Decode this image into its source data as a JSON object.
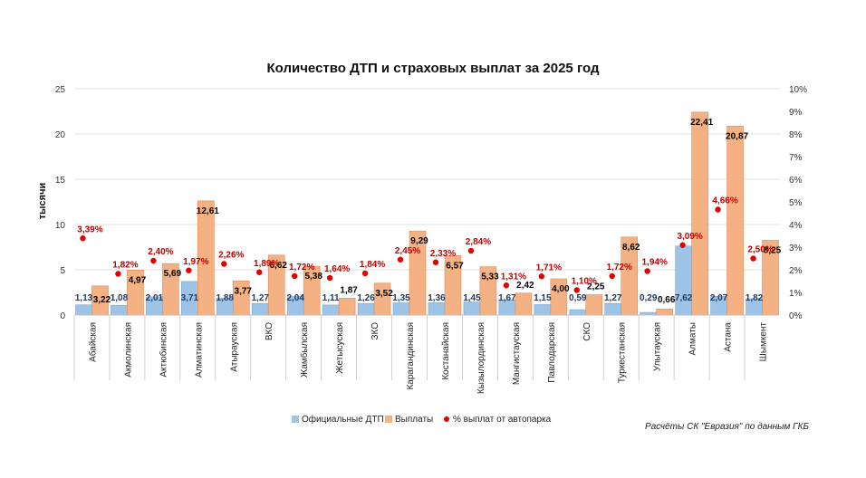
{
  "chart_data": {
    "type": "bar",
    "title": "Количество ДТП и страховых выплат за 2025 год",
    "ylabel": "тысячи",
    "ylim": [
      0,
      25
    ],
    "y_ticks": [
      "0",
      "5",
      "10",
      "15",
      "20",
      "25"
    ],
    "y2lim": [
      0,
      10
    ],
    "y2_ticks": [
      "0%",
      "1%",
      "2%",
      "3%",
      "4%",
      "5%",
      "6%",
      "7%",
      "8%",
      "9%",
      "10%"
    ],
    "categories": [
      "Абайская",
      "Акмолинская",
      "Актюбинская",
      "Алматинская",
      "Атырауская",
      "ВКО",
      "Жамбылская",
      "Жетысуская",
      "ЗКО",
      "Карагандинская",
      "Костанайская",
      "Кызылординская",
      "Мангистауская",
      "Павлодарская",
      "СКО",
      "Туркестанская",
      "Улытауская",
      "Алматы",
      "Астана",
      "Шымкент"
    ],
    "series": [
      {
        "name": "Официальные ДТП",
        "color": "#9dc3e6",
        "values": [
          1.13,
          1.08,
          2.01,
          3.71,
          1.88,
          1.27,
          2.04,
          1.11,
          1.26,
          1.35,
          1.36,
          1.45,
          1.67,
          1.15,
          0.59,
          1.27,
          0.29,
          7.62,
          2.07,
          1.82
        ],
        "labels": [
          "1,13",
          "1,08",
          "2,01",
          "3,71",
          "1,88",
          "1,27",
          "2,04",
          "1,11",
          "1,26",
          "1,35",
          "1,36",
          "1,45",
          "1,67",
          "1,15",
          "0,59",
          "1,27",
          "0,29",
          "7,62",
          "2,07",
          "1,82"
        ]
      },
      {
        "name": "Выплаты",
        "color": "#f4b183",
        "values": [
          3.22,
          4.97,
          5.69,
          12.61,
          3.77,
          6.62,
          5.38,
          1.87,
          3.52,
          9.29,
          6.57,
          5.33,
          2.42,
          4.0,
          2.25,
          8.62,
          0.66,
          22.41,
          20.87,
          8.25
        ],
        "labels": [
          "3,22",
          "4,97",
          "5,69",
          "12,61",
          "3,77",
          "6,62",
          "5,38",
          "1,87",
          "3,52",
          "9,29",
          "6,57",
          "5,33",
          "2,42",
          "4,00",
          "2,25",
          "8,62",
          "0,66",
          "22,41",
          "20,87",
          "8,25"
        ]
      },
      {
        "name": "% выплат от автопарка",
        "color": "#e00000",
        "axis": "secondary",
        "values": [
          3.39,
          1.82,
          2.4,
          1.97,
          2.26,
          1.89,
          1.72,
          1.64,
          1.84,
          2.45,
          2.33,
          2.84,
          1.31,
          1.71,
          1.1,
          1.72,
          1.94,
          3.09,
          4.66,
          2.5
        ],
        "labels": [
          "3,39%",
          "1,82%",
          "2,40%",
          "1,97%",
          "2,26%",
          "1,89%",
          "1,72%",
          "1,64%",
          "1,84%",
          "2,45%",
          "2,33%",
          "2,84%",
          "1,31%",
          "1,71%",
          "1,10%",
          "1,72%",
          "1,94%",
          "3,09%",
          "4,66%",
          "2,50%"
        ]
      }
    ],
    "legend": "bottom",
    "source": "Расчёты СК \"Евразия\" по данным ГКБ"
  }
}
